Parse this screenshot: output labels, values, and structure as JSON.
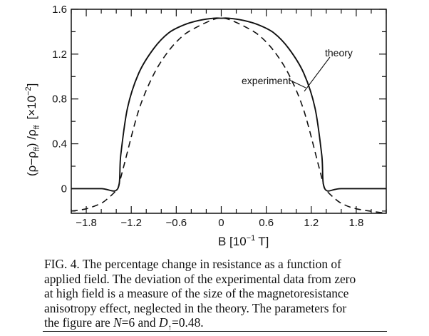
{
  "chart_data": {
    "type": "line",
    "xlabel": "B [10",
    "xlabel_exp": "−1",
    "xlabel_unit": "T]",
    "ylabel": "(ρ−ρ",
    "ylabel_sub": "ff",
    "ylabel_mid": ") /ρ",
    "ylabel_sub2": "ff",
    "ylabel_scale": "[×10",
    "ylabel_exp": "−2",
    "ylabel_end": "]",
    "xlim": [
      -2.0,
      2.2
    ],
    "ylim": [
      -0.22,
      1.6
    ],
    "xticks": [
      -1.8,
      -1.2,
      -0.6,
      0,
      0.6,
      1.2,
      1.8
    ],
    "xtick_labels": [
      "−1.8",
      "−1.2",
      "−0.6",
      "0",
      "0.6",
      "1.2",
      "1.8"
    ],
    "yticks": [
      0,
      0.4,
      0.8,
      1.2,
      1.6
    ],
    "ytick_labels": [
      "0",
      "0.4",
      "0.8",
      "1.2",
      "1.6"
    ],
    "grid": false,
    "series": [
      {
        "name": "theory",
        "style": "solid",
        "x": [
          -2.0,
          -1.6,
          -1.38,
          -1.34,
          -1.25,
          -1.1,
          -0.9,
          -0.7,
          -0.5,
          -0.3,
          -0.1,
          0,
          0.1,
          0.3,
          0.5,
          0.7,
          0.9,
          1.1,
          1.25,
          1.34,
          1.38,
          1.6,
          2.2
        ],
        "y": [
          0,
          0,
          0,
          0.3,
          0.72,
          1.03,
          1.25,
          1.39,
          1.46,
          1.5,
          1.52,
          1.52,
          1.52,
          1.5,
          1.46,
          1.39,
          1.25,
          1.03,
          0.72,
          0.3,
          0,
          0,
          0
        ]
      },
      {
        "name": "experiment",
        "style": "dashed",
        "x": [
          -2.0,
          -1.8,
          -1.6,
          -1.5,
          -1.42,
          -1.38,
          -1.3,
          -1.1,
          -0.9,
          -0.7,
          -0.5,
          -0.3,
          -0.1,
          0,
          0.1,
          0.3,
          0.5,
          0.7,
          0.9,
          1.1,
          1.3,
          1.38,
          1.42,
          1.5,
          1.6,
          1.8,
          2.2
        ],
        "y": [
          -0.2,
          -0.18,
          -0.13,
          -0.08,
          -0.03,
          0,
          0.2,
          0.7,
          1.02,
          1.23,
          1.37,
          1.45,
          1.51,
          1.52,
          1.51,
          1.45,
          1.37,
          1.23,
          1.02,
          0.7,
          0.2,
          0,
          -0.03,
          -0.08,
          -0.13,
          -0.18,
          -0.22
        ]
      }
    ],
    "annotations": [
      "theory",
      "experiment"
    ]
  },
  "caption": {
    "line1": "FIG. 4.  The percentage change in resistance as a function of",
    "line2": "applied field.  The deviation of the experimental data from zero",
    "line3": "at high field is a measure of the size of the magnetoresistance",
    "line4": "anisotropy effect, neglected in the theory.  The parameters for",
    "line5_a": "the figure are ",
    "line5_N": "N",
    "line5_b": "=6 and ",
    "line5_D": "D",
    "line5_sub": "↑",
    "line5_c": "=0.48."
  }
}
